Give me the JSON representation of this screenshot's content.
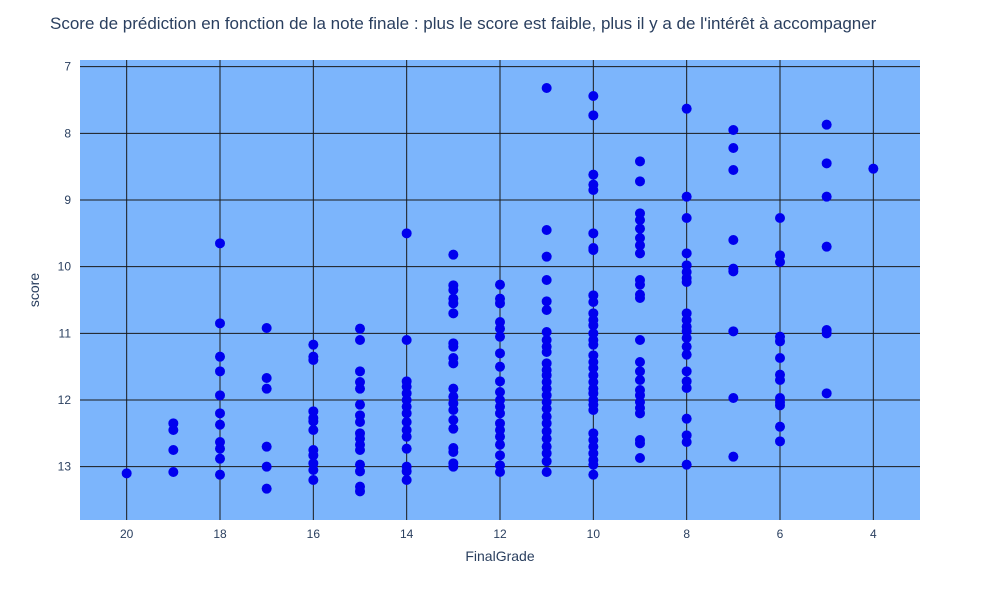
{
  "chart_data": {
    "type": "scatter",
    "title": "Score de prédiction en fonction de la note finale : plus le score est faible, plus il y a de l'intérêt à accompagner",
    "xlabel": "FinalGrade",
    "ylabel": "score",
    "x_axis_reversed": true,
    "y_axis_reversed": true,
    "xlim": [
      21,
      3
    ],
    "ylim": [
      6.9,
      13.8
    ],
    "x_ticks": [
      20,
      18,
      16,
      14,
      12,
      10,
      8,
      6,
      4
    ],
    "y_ticks": [
      7,
      8,
      9,
      10,
      11,
      12,
      13
    ],
    "grid": true,
    "legend": "none",
    "colors": {
      "plot_background": "#7cb5fc",
      "marker": "#0000ee",
      "grid": "#1a1a1a",
      "text": "#2a3f5f",
      "title": "#2a3f5f"
    },
    "points": [
      {
        "x": 20,
        "y": 13.1
      },
      {
        "x": 19,
        "y": 12.35
      },
      {
        "x": 19,
        "y": 12.45
      },
      {
        "x": 19,
        "y": 12.75
      },
      {
        "x": 19,
        "y": 13.08
      },
      {
        "x": 18,
        "y": 9.65
      },
      {
        "x": 18,
        "y": 10.85
      },
      {
        "x": 18,
        "y": 11.35
      },
      {
        "x": 18,
        "y": 11.57
      },
      {
        "x": 18,
        "y": 11.93
      },
      {
        "x": 18,
        "y": 12.2
      },
      {
        "x": 18,
        "y": 12.37
      },
      {
        "x": 18,
        "y": 12.63
      },
      {
        "x": 18,
        "y": 12.73
      },
      {
        "x": 18,
        "y": 12.88
      },
      {
        "x": 18,
        "y": 13.12
      },
      {
        "x": 17,
        "y": 10.92
      },
      {
        "x": 17,
        "y": 11.67
      },
      {
        "x": 17,
        "y": 11.83
      },
      {
        "x": 17,
        "y": 12.7
      },
      {
        "x": 17,
        "y": 13.0
      },
      {
        "x": 17,
        "y": 13.33
      },
      {
        "x": 16,
        "y": 11.17
      },
      {
        "x": 16,
        "y": 11.35
      },
      {
        "x": 16,
        "y": 11.4
      },
      {
        "x": 16,
        "y": 12.17
      },
      {
        "x": 16,
        "y": 12.27
      },
      {
        "x": 16,
        "y": 12.32
      },
      {
        "x": 16,
        "y": 12.45
      },
      {
        "x": 16,
        "y": 12.75
      },
      {
        "x": 16,
        "y": 12.83
      },
      {
        "x": 16,
        "y": 12.95
      },
      {
        "x": 16,
        "y": 13.05
      },
      {
        "x": 16,
        "y": 13.2
      },
      {
        "x": 15,
        "y": 10.93
      },
      {
        "x": 15,
        "y": 11.1
      },
      {
        "x": 15,
        "y": 11.57
      },
      {
        "x": 15,
        "y": 11.73
      },
      {
        "x": 15,
        "y": 11.83
      },
      {
        "x": 15,
        "y": 12.07
      },
      {
        "x": 15,
        "y": 12.23
      },
      {
        "x": 15,
        "y": 12.33
      },
      {
        "x": 15,
        "y": 12.5
      },
      {
        "x": 15,
        "y": 12.58
      },
      {
        "x": 15,
        "y": 12.67
      },
      {
        "x": 15,
        "y": 12.75
      },
      {
        "x": 15,
        "y": 12.97
      },
      {
        "x": 15,
        "y": 13.07
      },
      {
        "x": 15,
        "y": 13.3
      },
      {
        "x": 15,
        "y": 13.37
      },
      {
        "x": 14,
        "y": 9.5
      },
      {
        "x": 14,
        "y": 11.1
      },
      {
        "x": 14,
        "y": 11.72
      },
      {
        "x": 14,
        "y": 11.8
      },
      {
        "x": 14,
        "y": 11.9
      },
      {
        "x": 14,
        "y": 12.0
      },
      {
        "x": 14,
        "y": 12.1
      },
      {
        "x": 14,
        "y": 12.2
      },
      {
        "x": 14,
        "y": 12.33
      },
      {
        "x": 14,
        "y": 12.45
      },
      {
        "x": 14,
        "y": 12.55
      },
      {
        "x": 14,
        "y": 12.73
      },
      {
        "x": 14,
        "y": 13.0
      },
      {
        "x": 14,
        "y": 13.07
      },
      {
        "x": 14,
        "y": 13.2
      },
      {
        "x": 13,
        "y": 9.82
      },
      {
        "x": 13,
        "y": 10.28
      },
      {
        "x": 13,
        "y": 10.35
      },
      {
        "x": 13,
        "y": 10.48
      },
      {
        "x": 13,
        "y": 10.55
      },
      {
        "x": 13,
        "y": 10.7
      },
      {
        "x": 13,
        "y": 11.15
      },
      {
        "x": 13,
        "y": 11.2
      },
      {
        "x": 13,
        "y": 11.37
      },
      {
        "x": 13,
        "y": 11.45
      },
      {
        "x": 13,
        "y": 11.83
      },
      {
        "x": 13,
        "y": 11.95
      },
      {
        "x": 13,
        "y": 12.05
      },
      {
        "x": 13,
        "y": 12.15
      },
      {
        "x": 13,
        "y": 12.3
      },
      {
        "x": 13,
        "y": 12.43
      },
      {
        "x": 13,
        "y": 12.72
      },
      {
        "x": 13,
        "y": 12.78
      },
      {
        "x": 13,
        "y": 12.95
      },
      {
        "x": 13,
        "y": 13.0
      },
      {
        "x": 12,
        "y": 10.27
      },
      {
        "x": 12,
        "y": 10.48
      },
      {
        "x": 12,
        "y": 10.55
      },
      {
        "x": 12,
        "y": 10.83
      },
      {
        "x": 12,
        "y": 10.93
      },
      {
        "x": 12,
        "y": 11.05
      },
      {
        "x": 12,
        "y": 11.3
      },
      {
        "x": 12,
        "y": 11.5
      },
      {
        "x": 12,
        "y": 11.72
      },
      {
        "x": 12,
        "y": 11.88
      },
      {
        "x": 12,
        "y": 12.0
      },
      {
        "x": 12,
        "y": 12.1
      },
      {
        "x": 12,
        "y": 12.2
      },
      {
        "x": 12,
        "y": 12.35
      },
      {
        "x": 12,
        "y": 12.45
      },
      {
        "x": 12,
        "y": 12.55
      },
      {
        "x": 12,
        "y": 12.67
      },
      {
        "x": 12,
        "y": 12.83
      },
      {
        "x": 12,
        "y": 12.98
      },
      {
        "x": 12,
        "y": 13.08
      },
      {
        "x": 11,
        "y": 7.32
      },
      {
        "x": 11,
        "y": 9.45
      },
      {
        "x": 11,
        "y": 9.85
      },
      {
        "x": 11,
        "y": 10.2
      },
      {
        "x": 11,
        "y": 10.52
      },
      {
        "x": 11,
        "y": 10.65
      },
      {
        "x": 11,
        "y": 10.98
      },
      {
        "x": 11,
        "y": 11.1
      },
      {
        "x": 11,
        "y": 11.2
      },
      {
        "x": 11,
        "y": 11.28
      },
      {
        "x": 11,
        "y": 11.45
      },
      {
        "x": 11,
        "y": 11.55
      },
      {
        "x": 11,
        "y": 11.63
      },
      {
        "x": 11,
        "y": 11.73
      },
      {
        "x": 11,
        "y": 11.83
      },
      {
        "x": 11,
        "y": 11.93
      },
      {
        "x": 11,
        "y": 12.03
      },
      {
        "x": 11,
        "y": 12.13
      },
      {
        "x": 11,
        "y": 12.25
      },
      {
        "x": 11,
        "y": 12.35
      },
      {
        "x": 11,
        "y": 12.47
      },
      {
        "x": 11,
        "y": 12.58
      },
      {
        "x": 11,
        "y": 12.7
      },
      {
        "x": 11,
        "y": 12.8
      },
      {
        "x": 11,
        "y": 12.92
      },
      {
        "x": 11,
        "y": 13.08
      },
      {
        "x": 10,
        "y": 7.44
      },
      {
        "x": 10,
        "y": 7.73
      },
      {
        "x": 10,
        "y": 8.62
      },
      {
        "x": 10,
        "y": 8.77
      },
      {
        "x": 10,
        "y": 8.85
      },
      {
        "x": 10,
        "y": 9.5
      },
      {
        "x": 10,
        "y": 9.72
      },
      {
        "x": 10,
        "y": 9.75
      },
      {
        "x": 10,
        "y": 10.43
      },
      {
        "x": 10,
        "y": 10.53
      },
      {
        "x": 10,
        "y": 10.7
      },
      {
        "x": 10,
        "y": 10.8
      },
      {
        "x": 10,
        "y": 10.88
      },
      {
        "x": 10,
        "y": 11.0
      },
      {
        "x": 10,
        "y": 11.1
      },
      {
        "x": 10,
        "y": 11.17
      },
      {
        "x": 10,
        "y": 11.33
      },
      {
        "x": 10,
        "y": 11.43
      },
      {
        "x": 10,
        "y": 11.52
      },
      {
        "x": 10,
        "y": 11.63
      },
      {
        "x": 10,
        "y": 11.73
      },
      {
        "x": 10,
        "y": 11.83
      },
      {
        "x": 10,
        "y": 11.9
      },
      {
        "x": 10,
        "y": 12.0
      },
      {
        "x": 10,
        "y": 12.07
      },
      {
        "x": 10,
        "y": 12.15
      },
      {
        "x": 10,
        "y": 12.5
      },
      {
        "x": 10,
        "y": 12.6
      },
      {
        "x": 10,
        "y": 12.7
      },
      {
        "x": 10,
        "y": 12.8
      },
      {
        "x": 10,
        "y": 12.9
      },
      {
        "x": 10,
        "y": 12.97
      },
      {
        "x": 10,
        "y": 13.12
      },
      {
        "x": 9,
        "y": 8.42
      },
      {
        "x": 9,
        "y": 8.72
      },
      {
        "x": 9,
        "y": 9.2
      },
      {
        "x": 9,
        "y": 9.3
      },
      {
        "x": 9,
        "y": 9.43
      },
      {
        "x": 9,
        "y": 9.57
      },
      {
        "x": 9,
        "y": 9.68
      },
      {
        "x": 9,
        "y": 9.8
      },
      {
        "x": 9,
        "y": 10.2
      },
      {
        "x": 9,
        "y": 10.27
      },
      {
        "x": 9,
        "y": 10.42
      },
      {
        "x": 9,
        "y": 10.47
      },
      {
        "x": 9,
        "y": 11.1
      },
      {
        "x": 9,
        "y": 11.43
      },
      {
        "x": 9,
        "y": 11.57
      },
      {
        "x": 9,
        "y": 11.7
      },
      {
        "x": 9,
        "y": 11.85
      },
      {
        "x": 9,
        "y": 11.93
      },
      {
        "x": 9,
        "y": 12.03
      },
      {
        "x": 9,
        "y": 12.12
      },
      {
        "x": 9,
        "y": 12.2
      },
      {
        "x": 9,
        "y": 12.6
      },
      {
        "x": 9,
        "y": 12.65
      },
      {
        "x": 9,
        "y": 12.87
      },
      {
        "x": 8,
        "y": 7.63
      },
      {
        "x": 8,
        "y": 8.95
      },
      {
        "x": 8,
        "y": 9.27
      },
      {
        "x": 8,
        "y": 9.8
      },
      {
        "x": 8,
        "y": 9.98
      },
      {
        "x": 8,
        "y": 10.08
      },
      {
        "x": 8,
        "y": 10.17
      },
      {
        "x": 8,
        "y": 10.23
      },
      {
        "x": 8,
        "y": 10.7
      },
      {
        "x": 8,
        "y": 10.8
      },
      {
        "x": 8,
        "y": 10.9
      },
      {
        "x": 8,
        "y": 10.97
      },
      {
        "x": 8,
        "y": 11.07
      },
      {
        "x": 8,
        "y": 11.2
      },
      {
        "x": 8,
        "y": 11.32
      },
      {
        "x": 8,
        "y": 11.57
      },
      {
        "x": 8,
        "y": 11.72
      },
      {
        "x": 8,
        "y": 11.82
      },
      {
        "x": 8,
        "y": 12.28
      },
      {
        "x": 8,
        "y": 12.53
      },
      {
        "x": 8,
        "y": 12.63
      },
      {
        "x": 8,
        "y": 12.97
      },
      {
        "x": 7,
        "y": 7.95
      },
      {
        "x": 7,
        "y": 8.22
      },
      {
        "x": 7,
        "y": 8.55
      },
      {
        "x": 7,
        "y": 9.6
      },
      {
        "x": 7,
        "y": 10.03
      },
      {
        "x": 7,
        "y": 10.07
      },
      {
        "x": 7,
        "y": 10.97
      },
      {
        "x": 7,
        "y": 11.97
      },
      {
        "x": 7,
        "y": 12.85
      },
      {
        "x": 6,
        "y": 9.27
      },
      {
        "x": 6,
        "y": 9.83
      },
      {
        "x": 6,
        "y": 9.93
      },
      {
        "x": 6,
        "y": 11.05
      },
      {
        "x": 6,
        "y": 11.12
      },
      {
        "x": 6,
        "y": 11.37
      },
      {
        "x": 6,
        "y": 11.62
      },
      {
        "x": 6,
        "y": 11.7
      },
      {
        "x": 6,
        "y": 11.97
      },
      {
        "x": 6,
        "y": 12.03
      },
      {
        "x": 6,
        "y": 12.08
      },
      {
        "x": 6,
        "y": 12.4
      },
      {
        "x": 6,
        "y": 12.62
      },
      {
        "x": 5,
        "y": 7.87
      },
      {
        "x": 5,
        "y": 8.45
      },
      {
        "x": 5,
        "y": 8.95
      },
      {
        "x": 5,
        "y": 9.7
      },
      {
        "x": 5,
        "y": 10.95
      },
      {
        "x": 5,
        "y": 11.0
      },
      {
        "x": 5,
        "y": 11.9
      },
      {
        "x": 4,
        "y": 8.53
      }
    ]
  }
}
